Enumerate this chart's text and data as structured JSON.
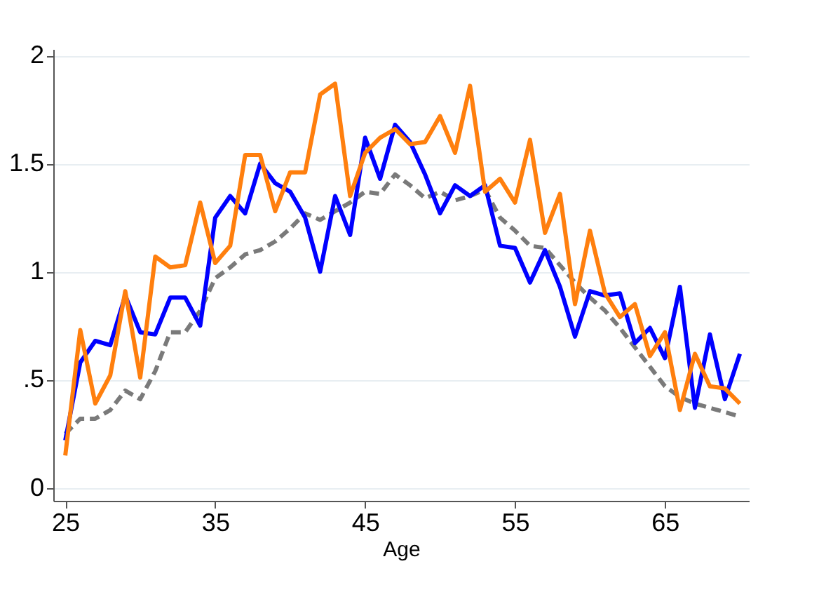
{
  "chart_data": {
    "type": "line",
    "xlabel": "Age",
    "x": [
      25,
      26,
      27,
      28,
      29,
      30,
      31,
      32,
      33,
      34,
      35,
      36,
      37,
      38,
      39,
      40,
      41,
      42,
      43,
      44,
      45,
      46,
      47,
      48,
      49,
      50,
      51,
      52,
      53,
      54,
      55,
      56,
      57,
      58,
      59,
      60,
      61,
      62,
      63,
      64,
      65,
      66,
      67,
      68,
      69,
      70
    ],
    "series": [
      {
        "color": "#7a7a7a",
        "line_style": "dashed",
        "values": [
          0.25,
          0.32,
          0.32,
          0.36,
          0.45,
          0.41,
          0.54,
          0.72,
          0.72,
          0.82,
          0.97,
          1.02,
          1.08,
          1.1,
          1.14,
          1.2,
          1.27,
          1.24,
          1.28,
          1.32,
          1.37,
          1.36,
          1.45,
          1.4,
          1.34,
          1.37,
          1.33,
          1.35,
          1.38,
          1.25,
          1.19,
          1.12,
          1.11,
          1.03,
          0.95,
          0.88,
          0.82,
          0.74,
          0.65,
          0.56,
          0.47,
          0.42,
          0.39,
          0.37,
          0.35,
          0.33
        ]
      },
      {
        "color": "#0000ff",
        "line_style": "solid",
        "values": [
          0.22,
          0.58,
          0.68,
          0.66,
          0.89,
          0.72,
          0.71,
          0.88,
          0.88,
          0.75,
          1.25,
          1.35,
          1.27,
          1.5,
          1.41,
          1.37,
          1.25,
          1.0,
          1.35,
          1.17,
          1.62,
          1.43,
          1.68,
          1.6,
          1.45,
          1.27,
          1.4,
          1.35,
          1.4,
          1.12,
          1.11,
          0.95,
          1.1,
          0.93,
          0.7,
          0.91,
          0.89,
          0.9,
          0.67,
          0.74,
          0.6,
          0.93,
          0.37,
          0.71,
          0.41,
          0.62
        ]
      },
      {
        "color": "#ff7f0e",
        "line_style": "solid",
        "values": [
          0.15,
          0.73,
          0.39,
          0.52,
          0.91,
          0.51,
          1.07,
          1.02,
          1.03,
          1.32,
          1.04,
          1.12,
          1.54,
          1.54,
          1.28,
          1.46,
          1.46,
          1.82,
          1.87,
          1.35,
          1.55,
          1.62,
          1.66,
          1.59,
          1.6,
          1.72,
          1.55,
          1.86,
          1.37,
          1.43,
          1.32,
          1.61,
          1.18,
          1.36,
          0.85,
          1.19,
          0.9,
          0.79,
          0.85,
          0.61,
          0.72,
          0.36,
          0.62,
          0.47,
          0.46,
          0.39
        ]
      }
    ],
    "xlim": [
      24.2,
      70.6
    ],
    "xticks": [
      25,
      35,
      45,
      55,
      65
    ],
    "ylim": [
      -0.06,
      2.03
    ],
    "yticks": [
      0,
      {
        "value": 0.5,
        "label": ".5"
      },
      1,
      1.5,
      2
    ],
    "grid": "y",
    "marker": "none"
  }
}
